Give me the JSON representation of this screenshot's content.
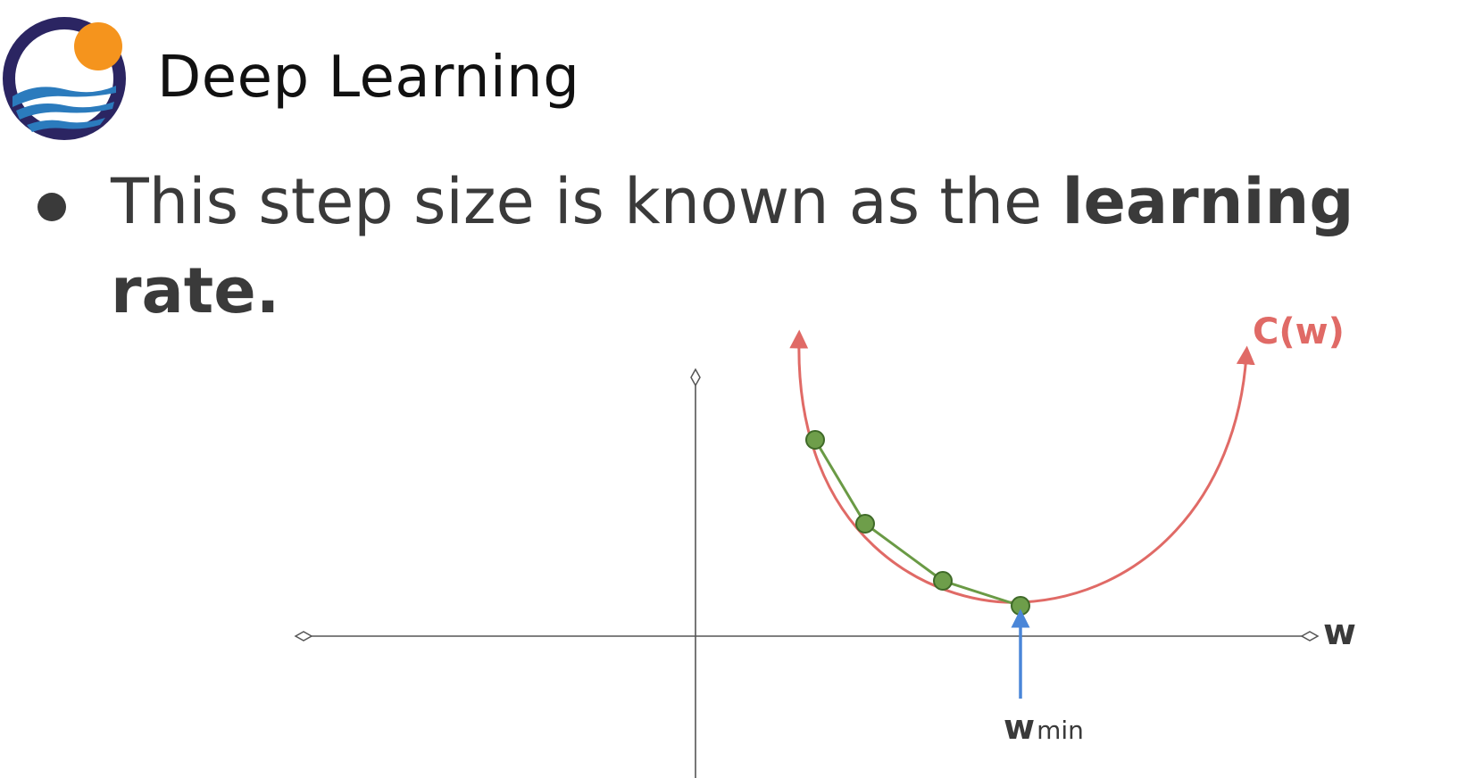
{
  "header": {
    "course_title": "Deep Learning"
  },
  "bullet": {
    "text_plain": "This step size is known as the ",
    "text_bold": "learning rate."
  },
  "diagram": {
    "curve_label": "C(w)",
    "x_axis_label": "w",
    "min_label_main": "w",
    "min_label_sub": "min",
    "step_count": 4
  },
  "colors": {
    "curve": "#e06a66",
    "steps": "#6a9a45",
    "step_points": "#6e9e4a",
    "min_arrow": "#4a86d8",
    "axes": "#555555",
    "text": "#3a3a3a",
    "logo_ring": "#2b2562",
    "logo_sun": "#f5941d",
    "logo_waves": "#2b7bbd"
  }
}
